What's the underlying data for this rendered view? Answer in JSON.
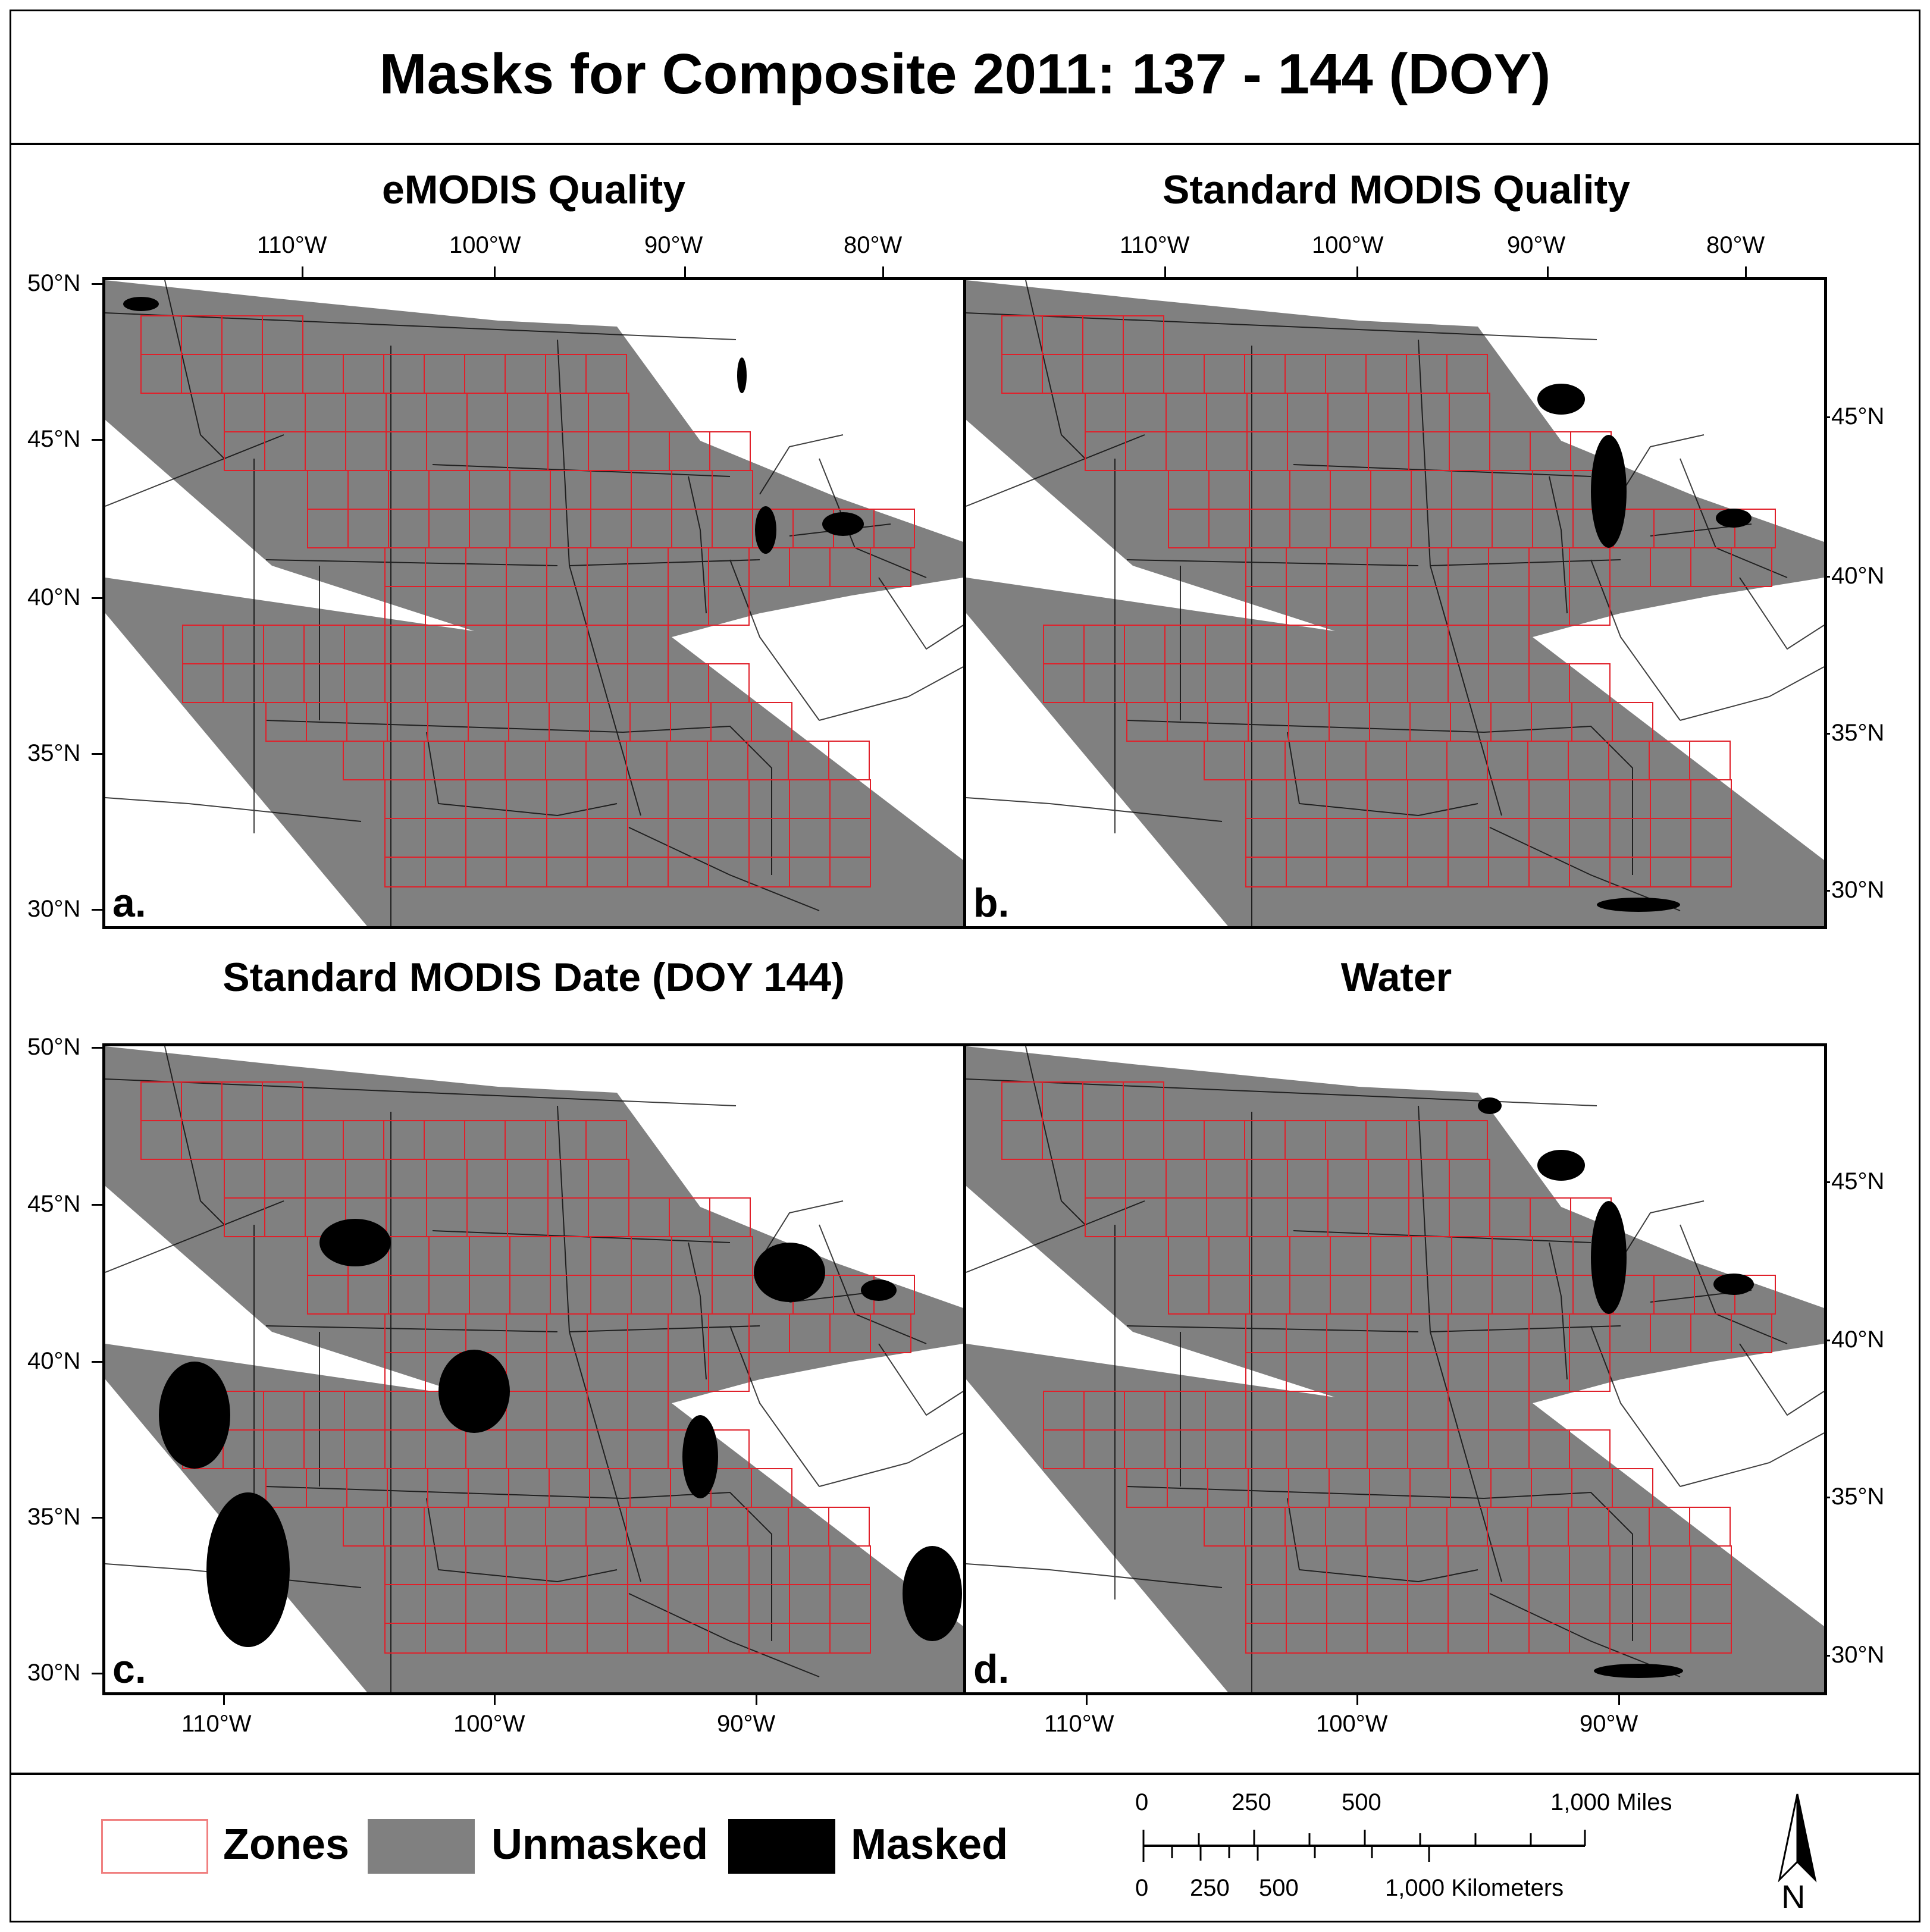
{
  "title": "Masks for Composite 2011: 137 - 144 (DOY)",
  "panels": [
    {
      "title": "eMODIS Quality",
      "letter": "a."
    },
    {
      "title": "Standard MODIS Quality",
      "letter": "b."
    },
    {
      "title": "Standard MODIS Date (DOY 144)",
      "letter": "c."
    },
    {
      "title": "Water",
      "letter": "d."
    }
  ],
  "lon_labels_top": [
    "110°W",
    "100°W",
    "90°W",
    "80°W"
  ],
  "lon_labels_bottom": [
    "110°W",
    "100°W",
    "90°W"
  ],
  "lat_labels_left": [
    "50°N",
    "45°N",
    "40°N",
    "35°N",
    "30°N"
  ],
  "lat_labels_right": [
    "45°N",
    "40°N",
    "35°N",
    "30°N"
  ],
  "legend": {
    "zones": "Zones",
    "unmasked": "Unmasked",
    "masked": "Masked",
    "colors": {
      "zones": "#e0202a",
      "unmasked": "#808080",
      "masked": "#000000"
    }
  },
  "scale_bar": {
    "miles_ticks": [
      "0",
      "250",
      "500",
      "1,000 Miles"
    ],
    "km_ticks": [
      "0",
      "250",
      "500",
      "1,000 Kilometers"
    ]
  },
  "north_arrow": "N"
}
